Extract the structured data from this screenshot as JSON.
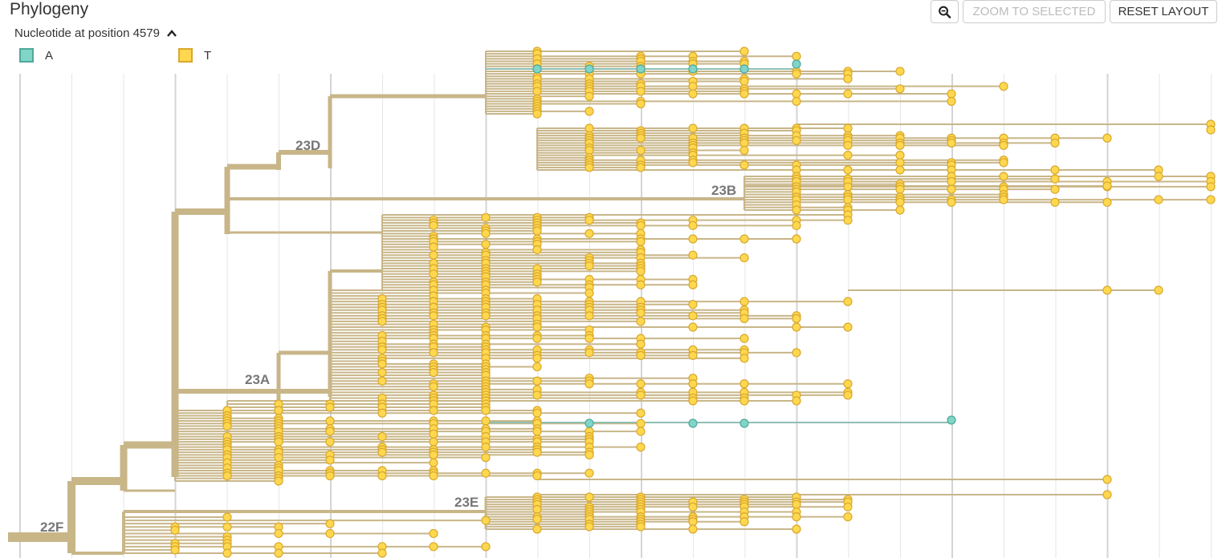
{
  "panel": {
    "title": "Phylogeny"
  },
  "toolbar": {
    "zoom_icon": "zoom-out-icon",
    "zoom_to_selected": "ZOOM TO SELECTED",
    "reset_layout": "RESET LAYOUT"
  },
  "legend": {
    "title": "Nucleotide at position 4579",
    "toggle_icon": "chevron-up-icon",
    "items": [
      {
        "label": "A",
        "color": "#7fd6c8",
        "border": "#4fa89a"
      },
      {
        "label": "T",
        "color": "#ffd84f",
        "border": "#d9a82c"
      }
    ]
  },
  "colors": {
    "branch": "#c8b689",
    "branch_A": "#8fbfb3",
    "grid": "#e6e6e6",
    "grid_major": "#d4d4d4"
  },
  "clades": [
    {
      "label": "23D"
    },
    {
      "label": "23B"
    },
    {
      "label": "23A"
    },
    {
      "label": "23E"
    },
    {
      "label": "22F"
    }
  ]
}
